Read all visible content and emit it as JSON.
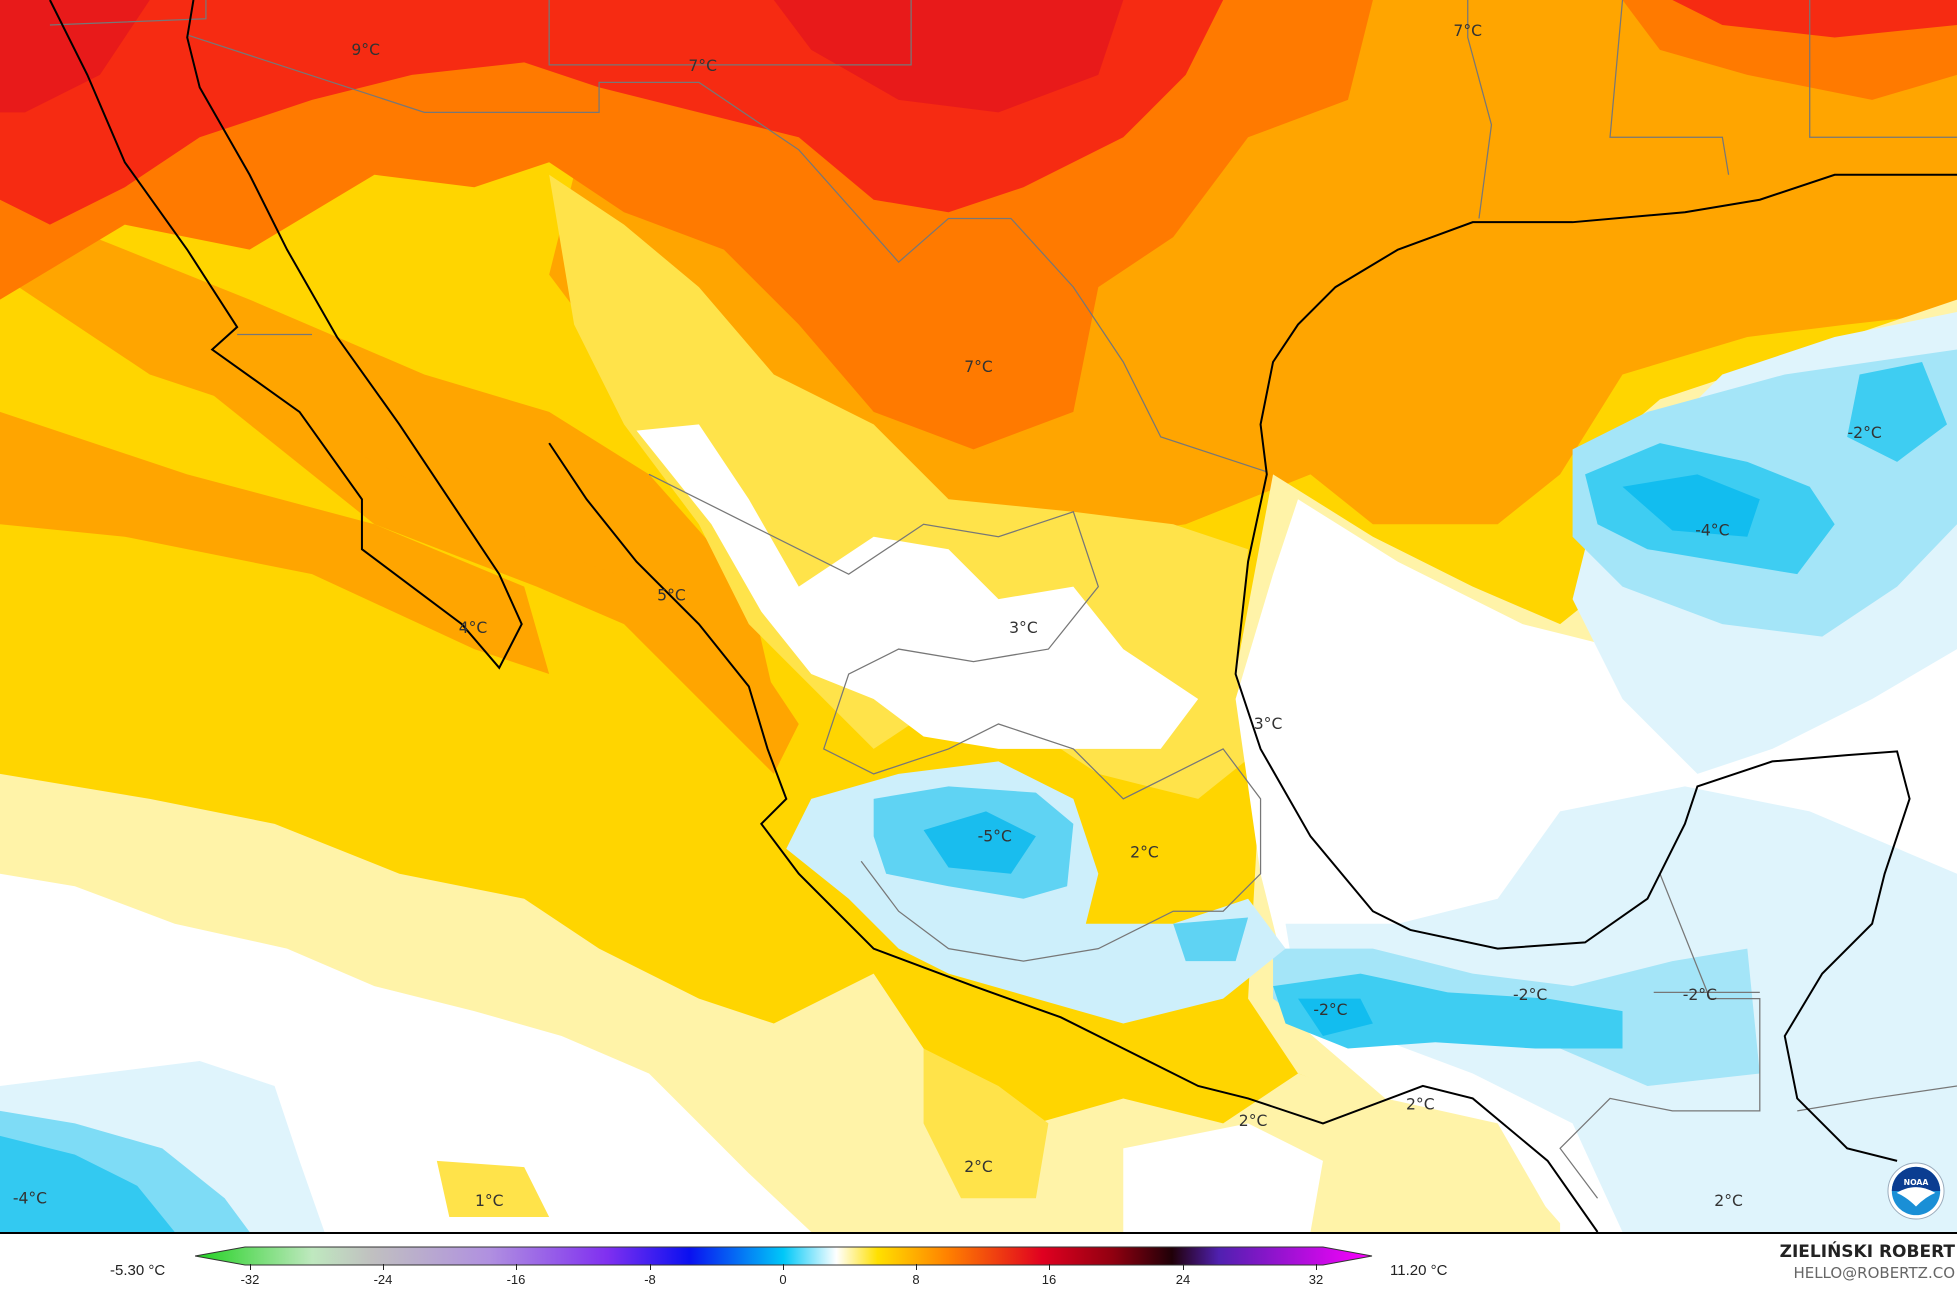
{
  "map": {
    "variable": "temperature anomaly",
    "labels": [
      {
        "text": "9°C"
      },
      {
        "text": "7°C"
      },
      {
        "text": "7°C"
      },
      {
        "text": "7°C"
      },
      {
        "text": "-2°C"
      },
      {
        "text": "-4°C"
      },
      {
        "text": "5°C"
      },
      {
        "text": "4°C"
      },
      {
        "text": "3°C"
      },
      {
        "text": "3°C"
      },
      {
        "text": "-5°C"
      },
      {
        "text": "2°C"
      },
      {
        "text": "-2°C"
      },
      {
        "text": "-2°C"
      },
      {
        "text": "-2°C"
      },
      {
        "text": "2°C"
      },
      {
        "text": "2°C"
      },
      {
        "text": "2°C"
      },
      {
        "text": "1°C"
      },
      {
        "text": "-4°C"
      },
      {
        "text": "2°C"
      }
    ],
    "logo_text": "NOAA"
  },
  "colorbar": {
    "min_label": "-5.30 °C",
    "max_label": "11.20 °C",
    "ticks": [
      "-32",
      "-24",
      "-16",
      "-8",
      "0",
      "8",
      "16",
      "24",
      "32"
    ],
    "colors": [
      "#1fd11f",
      "#bfbfbf",
      "#a070e0",
      "#0a10f0",
      "#00c0f0",
      "#ffffff",
      "#ffd700",
      "#ff8000",
      "#e00010",
      "#300008",
      "#8020c0",
      "#ff00ff"
    ]
  },
  "credits": {
    "author": "ZIELIŃSKI ROBERT",
    "email": "HELLO@ROBERTZ.CO"
  }
}
